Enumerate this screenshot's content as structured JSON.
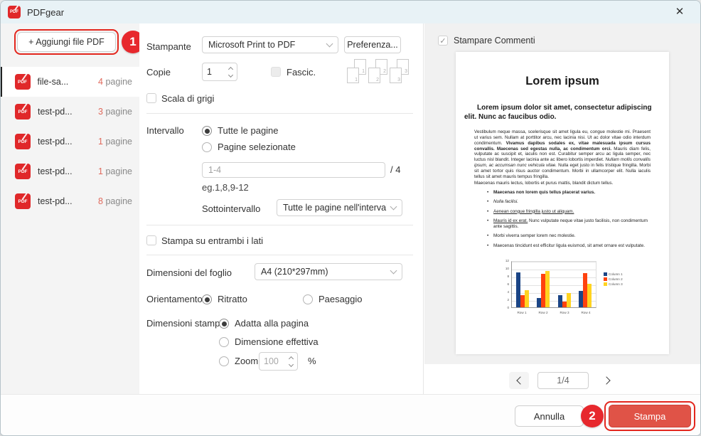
{
  "window": {
    "title": "PDFgear",
    "close_icon": "✕"
  },
  "colors": {
    "accent_red": "#e3271e",
    "badge_red": "#e7282d",
    "print_button": "#e05347",
    "pdf_icon_red": "#e0282a",
    "count_red": "#e0695c",
    "titlebar": "#e8f2f6"
  },
  "sidebar": {
    "add_button_label": "+  Aggiungi file PDF",
    "badge_1": "1",
    "pdf_icon_text": "PDF",
    "files": [
      {
        "name": "file-sa...",
        "count": "4",
        "pages_label": "pagine",
        "selected": true
      },
      {
        "name": "test-pd...",
        "count": "3",
        "pages_label": "pagine",
        "selected": false
      },
      {
        "name": "test-pd...",
        "count": "1",
        "pages_label": "pagine",
        "selected": false
      },
      {
        "name": "test-pd...",
        "count": "1",
        "pages_label": "pagine",
        "selected": false
      },
      {
        "name": "test-pd...",
        "count": "8",
        "pages_label": "pagine",
        "selected": false
      }
    ]
  },
  "form": {
    "printer_label": "Stampante",
    "printer_value": "Microsoft Print to PDF",
    "preferences_label": "Preferenza...",
    "copies_label": "Copie",
    "copies_value": "1",
    "collate_label": "Fascic.",
    "collate_nums": [
      "1",
      "2",
      "3"
    ],
    "grayscale_label": "Scala di grigi",
    "range_label": "Intervallo",
    "range_all_label": "Tutte le pagine",
    "range_selected_label": "Pagine selezionate",
    "range_placeholder": "1-4",
    "range_total": "/ 4",
    "range_hint": "eg.1,8,9-12",
    "subrange_label": "Sottointervallo",
    "subrange_value": "Tutte le pagine nell'interval",
    "duplex_label": "Stampa su entrambi i lati",
    "paper_label": "Dimensioni del foglio",
    "paper_value": "A4 (210*297mm)",
    "orientation_label": "Orientamento",
    "portrait_label": "Ritratto",
    "landscape_label": "Paesaggio",
    "print_size_label": "Dimensioni stampa",
    "fit_label": "Adatta alla pagina",
    "actual_label": "Dimensione effettiva",
    "zoom_label": "Zoom",
    "zoom_value": "100",
    "percent_label": "%"
  },
  "preview": {
    "comments_label": "Stampare Commenti",
    "check_icon": "✓",
    "doc": {
      "title": "Lorem ipsum",
      "intro": "Lorem ipsum dolor sit amet, consectetur adipiscing elit. Nunc ac faucibus odio.",
      "body_segments": [
        {
          "t": "Vestibulum neque massa, scelerisque sit amet ligula eu, congue molestie mi. Praesent ut varius sem. Nullam at porttitor arcu, nec lacinia nisi. Ut ac dolor vitae odio interdum condimentum. ",
          "s": "n"
        },
        {
          "t": "Vivamus dapibus sodales ex, vitae malesuada ipsum cursus convallis. Maecenas sed egestas nulla, ac condimentum orci.",
          "s": "b"
        },
        {
          "t": " Mauris diam felis, vulputate ac suscipit et, iaculis non est. Curabitur semper arcu ac ligula semper, nec luctus nisl blandit. Integer lacinia ante ac libero lobortis imperdiet. ",
          "s": "n"
        },
        {
          "t": "Nullam mollis convallis ipsum, ac accumsan nunc vehicula vitae.",
          "s": "i"
        },
        {
          "t": " Nulla eget justo in felis tristique fringilla. Morbi sit amet tortor quis risus auctor condimentum. Morbi in ullamcorper elit. Nulla iaculis tellus sit amet mauris tempus fringilla.",
          "s": "n"
        }
      ],
      "lead_line": "Maecenas mauris lectus, lobortis et purus mattis, blandit dictum tellus.",
      "bullets": [
        [
          {
            "t": "Maecenas non lorem quis tellus placerat varius.",
            "s": "b"
          }
        ],
        [
          {
            "t": "Nulla facilisi.",
            "s": "i"
          }
        ],
        [
          {
            "t": "Aenean congue fringilla justo ut aliquam.",
            "s": "u"
          }
        ],
        [
          {
            "t": "Mauris id ex erat.",
            "s": "u"
          },
          {
            "t": " Nunc vulputate neque vitae justo facilisis, non condimentum ante sagittis.",
            "s": "n"
          }
        ],
        [
          {
            "t": "Morbi viverra semper lorem nec molestie.",
            "s": "n"
          }
        ],
        [
          {
            "t": "Maecenas tincidunt est efficitur ligula euismod, sit amet ornare est vulputate.",
            "s": "n"
          }
        ]
      ]
    },
    "pager_value": "1/4"
  },
  "footer": {
    "cancel_label": "Annulla",
    "badge_2": "2",
    "print_label": "Stampa"
  },
  "chart_data": {
    "type": "bar",
    "title": "",
    "categories": [
      "Row 1",
      "Row 2",
      "Row 3",
      "Row 4"
    ],
    "series": [
      {
        "name": "Column 1",
        "color": "#1b4586",
        "values": [
          9.1,
          2.4,
          3.1,
          4.3
        ]
      },
      {
        "name": "Column 2",
        "color": "#ff420e",
        "values": [
          3.2,
          8.8,
          1.5,
          9.0
        ]
      },
      {
        "name": "Column 3",
        "color": "#ffd320",
        "values": [
          4.5,
          9.6,
          3.7,
          6.2
        ]
      }
    ],
    "ylim": [
      0,
      12
    ],
    "yticks": [
      0,
      2,
      4,
      6,
      8,
      10,
      12
    ],
    "grid": true,
    "legend_position": "right"
  }
}
